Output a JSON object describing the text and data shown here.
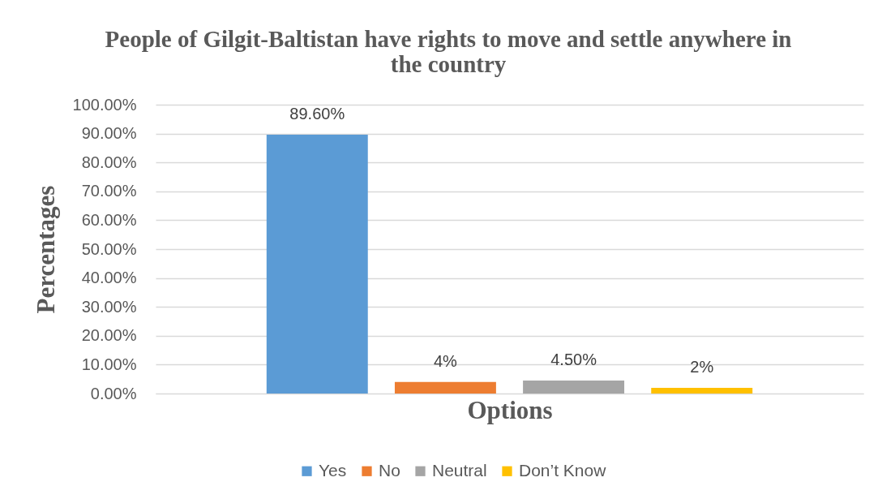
{
  "chart_data": {
    "type": "bar",
    "title": "People of Gilgit-Baltistan have rights to move and settle anywhere in the country",
    "xlabel": "Options",
    "ylabel": "Percentages",
    "categories": [
      null
    ],
    "series": [
      {
        "name": "Yes",
        "color": "#5b9bd5",
        "values": [
          89.6
        ],
        "value_labels": [
          "89.60%"
        ]
      },
      {
        "name": "No",
        "color": "#ed7d31",
        "values": [
          4
        ],
        "value_labels": [
          "4%"
        ]
      },
      {
        "name": "Neutral",
        "color": "#a5a5a5",
        "values": [
          4.5
        ],
        "value_labels": [
          "4.50%"
        ]
      },
      {
        "name": "Don’t Know",
        "color": "#ffc000",
        "values": [
          2
        ],
        "value_labels": [
          "2%"
        ]
      }
    ],
    "ylim": [
      0,
      100
    ],
    "yticks": [
      {
        "value": 0,
        "label": "0.00%"
      },
      {
        "value": 10,
        "label": "10.00%"
      },
      {
        "value": 20,
        "label": "20.00%"
      },
      {
        "value": 30,
        "label": "30.00%"
      },
      {
        "value": 40,
        "label": "40.00%"
      },
      {
        "value": 50,
        "label": "50.00%"
      },
      {
        "value": 60,
        "label": "60.00%"
      },
      {
        "value": 70,
        "label": "70.00%"
      },
      {
        "value": 80,
        "label": "80.00%"
      },
      {
        "value": 90,
        "label": "90.00%"
      },
      {
        "value": 100,
        "label": "100.00%"
      }
    ],
    "grid": "y",
    "legend": "bottom"
  }
}
